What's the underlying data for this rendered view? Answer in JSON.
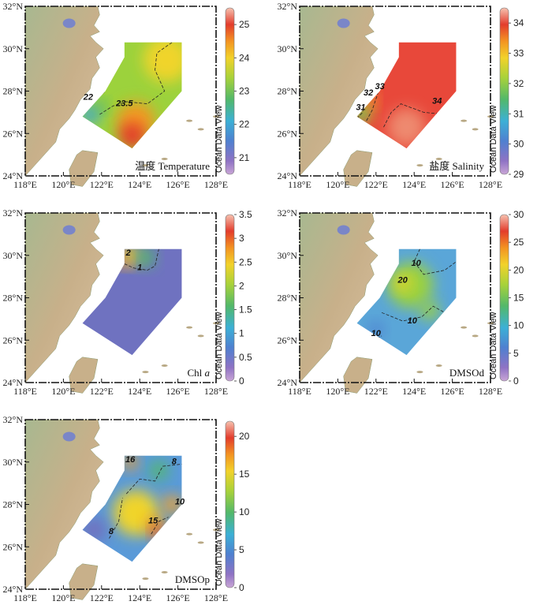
{
  "chart_data": {
    "type": "heatmap",
    "x_axis": {
      "ticks": [
        "118°E",
        "120°E",
        "122°E",
        "124°E",
        "126°E",
        "128°E"
      ],
      "range": [
        118,
        128
      ]
    },
    "y_axis": {
      "ticks": [
        "24°N",
        "26°N",
        "28°N",
        "30°N",
        "32°N"
      ],
      "range": [
        24,
        32
      ]
    },
    "watermark": "Ocean Data View",
    "panels": [
      {
        "id": "temperature",
        "label": "温度 Temperature",
        "colorbar": {
          "ticks": [
            "21",
            "22",
            "23",
            "24",
            "25"
          ],
          "min": 20.5,
          "max": 25.5
        },
        "contour_labels": [
          "22",
          "23.5"
        ]
      },
      {
        "id": "salinity",
        "label": "盐度 Salinity",
        "colorbar": {
          "ticks": [
            "29",
            "30",
            "31",
            "32",
            "33",
            "34"
          ],
          "min": 29,
          "max": 34.5
        },
        "contour_labels": [
          "31",
          "32",
          "33",
          "34"
        ]
      },
      {
        "id": "chla",
        "label": "Chl a",
        "label_main": "Chl ",
        "label_italic": "a",
        "colorbar": {
          "ticks": [
            "0",
            "0.5",
            "1",
            "1.5",
            "2",
            "2.5",
            "3",
            "3.5"
          ],
          "min": 0,
          "max": 3.5
        },
        "contour_labels": [
          "2",
          "1"
        ]
      },
      {
        "id": "dmsod",
        "label": "DMSOd",
        "colorbar": {
          "ticks": [
            "0",
            "5",
            "10",
            "15",
            "20",
            "25",
            "30"
          ],
          "min": 0,
          "max": 30
        },
        "contour_labels": [
          "10",
          "20",
          "10",
          "10"
        ]
      },
      {
        "id": "dmsop",
        "label": "DMSOp",
        "colorbar": {
          "ticks": [
            "0",
            "5",
            "10",
            "15",
            "20"
          ],
          "min": 0,
          "max": 22
        },
        "contour_labels": [
          "16",
          "8",
          "10",
          "15",
          "8"
        ]
      }
    ],
    "colormap": [
      "#8a5aa8",
      "#4f6ec9",
      "#3aa6d8",
      "#52b86a",
      "#9cd23c",
      "#f0d42a",
      "#f29a22",
      "#e84a2e",
      "#d82b2b",
      "#f7b6a2"
    ]
  }
}
